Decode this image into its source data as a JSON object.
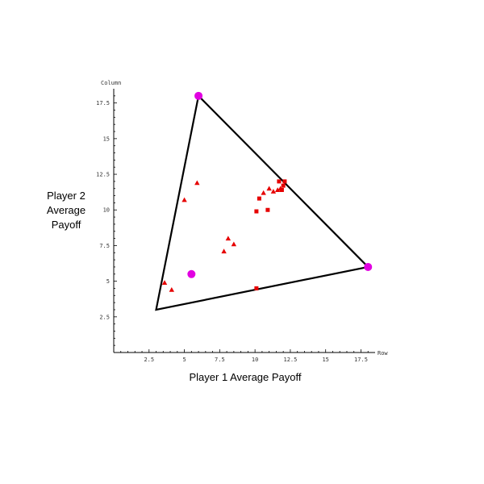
{
  "chart_data": {
    "type": "scatter",
    "xlabel": "Row",
    "ylabel": "Column",
    "outer_xlabel": "Player 1 Average Payoff",
    "outer_ylabel_lines": [
      "Player 2",
      "Average",
      "Payoff"
    ],
    "xlim": [
      0,
      18.5
    ],
    "ylim": [
      0,
      18.5
    ],
    "x_ticks": [
      "2.5",
      "5",
      "7.5",
      "10",
      "12.5",
      "15",
      "17.5"
    ],
    "y_ticks": [
      "2.5",
      "5",
      "7.5",
      "10",
      "12.5",
      "15",
      "17.5"
    ],
    "grid": false,
    "colors": {
      "region": "#000000",
      "vertex": "#e100e1",
      "triangle_points": "#e60000",
      "square_points": "#e60000"
    },
    "payoff_region": [
      [
        3,
        3
      ],
      [
        6,
        18
      ],
      [
        18,
        6
      ]
    ],
    "series": [
      {
        "marker": "circle",
        "points": [
          [
            6,
            18
          ],
          [
            18,
            6
          ],
          [
            5.5,
            5.5
          ]
        ]
      },
      {
        "marker": "triangle",
        "points": [
          [
            3.6,
            4.9
          ],
          [
            4.1,
            4.4
          ],
          [
            5,
            10.7
          ],
          [
            5.9,
            11.9
          ],
          [
            7.8,
            7.1
          ],
          [
            8.1,
            8
          ],
          [
            8.5,
            7.6
          ],
          [
            10.6,
            11.2
          ],
          [
            11,
            11.5
          ],
          [
            11.3,
            11.3
          ],
          [
            11.6,
            11.4
          ],
          [
            11.8,
            11.5
          ]
        ]
      },
      {
        "marker": "square",
        "points": [
          [
            10.1,
            4.5
          ],
          [
            10.1,
            9.9
          ],
          [
            10.3,
            10.8
          ],
          [
            10.9,
            10
          ],
          [
            11.7,
            12
          ],
          [
            11.9,
            11.4
          ],
          [
            12,
            11.7
          ],
          [
            12.1,
            12
          ]
        ]
      }
    ]
  }
}
